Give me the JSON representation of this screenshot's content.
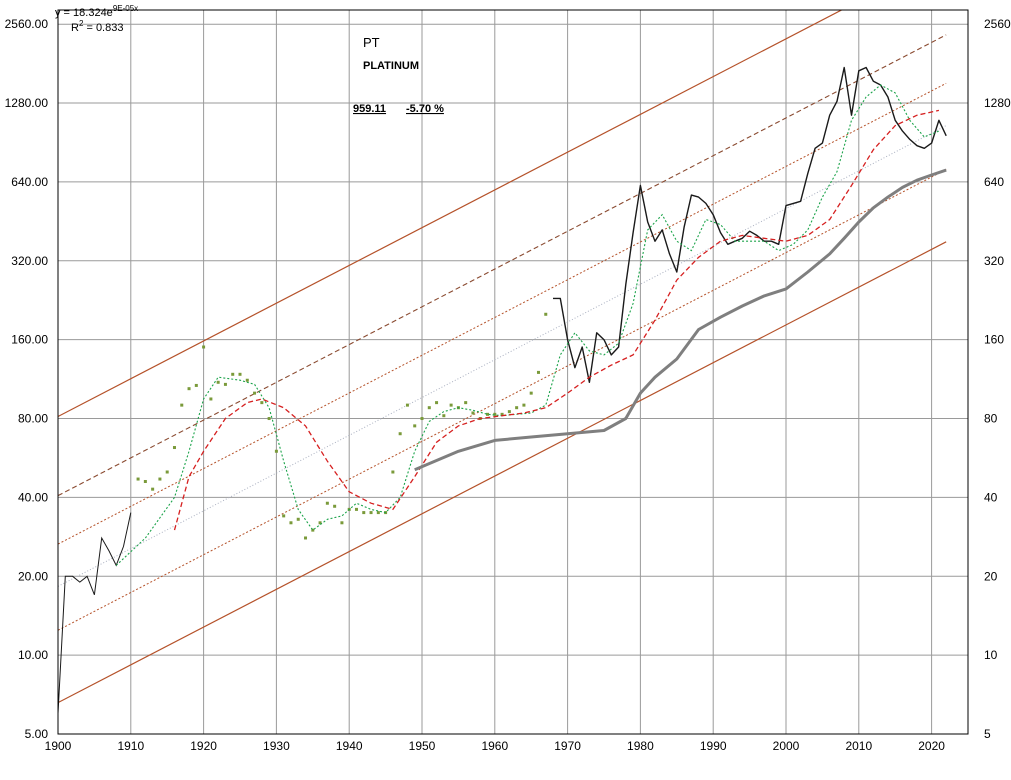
{
  "chart_data": {
    "type": "line",
    "title": "PT",
    "subtitle": "PLATINUM",
    "last_price": "959.11",
    "change": "-5.70 %",
    "regression": {
      "equation_prefix": "y = 18.324e",
      "equation_exponent": "9E-05x",
      "r2_label": "R",
      "r2_exponent": "2",
      "r2_value": " = 0.833"
    },
    "x_axis": {
      "min": 1900,
      "max": 2025,
      "ticks": [
        "1900",
        "1910",
        "1920",
        "1930",
        "1940",
        "1950",
        "1960",
        "1970",
        "1980",
        "1990",
        "2000",
        "2010",
        "2020"
      ]
    },
    "y_axis": {
      "scale": "log",
      "min": 5,
      "max": 2900,
      "left_ticks": [
        "5.00",
        "10.00",
        "20.00",
        "40.00",
        "80.00",
        "160.00",
        "320.00",
        "640.00",
        "1280.00",
        "2560.00"
      ],
      "right_ticks": [
        "5",
        "10",
        "20",
        "40",
        "80",
        "160",
        "320",
        "640",
        "1280",
        "2560"
      ],
      "tick_values": [
        5,
        10,
        20,
        40,
        80,
        160,
        320,
        640,
        1280,
        2560
      ]
    },
    "grid": true,
    "channel_lines": {
      "x": [
        1900,
        2022
      ],
      "center": [
        18.3,
        1050
      ],
      "offset_factors": [
        0.36,
        0.68,
        1.45,
        2.22,
        4.45
      ]
    },
    "series": [
      {
        "role": "price",
        "color": "#1a1a1a",
        "x": [
          1900,
          1901,
          1902,
          1903,
          1904,
          1905,
          1906,
          1907,
          1908,
          1909,
          1910,
          1911,
          1912,
          1913,
          1914,
          1915,
          1916,
          1917,
          1918,
          1919,
          1920,
          1921,
          1922,
          1923,
          1924,
          1925,
          1926,
          1927,
          1928,
          1929,
          1930,
          1931,
          1932,
          1933,
          1934,
          1935,
          1936,
          1937,
          1938,
          1939,
          1940,
          1941,
          1942,
          1943,
          1944,
          1945,
          1946,
          1947,
          1948,
          1949,
          1950,
          1951,
          1952,
          1953,
          1954,
          1955,
          1956,
          1957,
          1958,
          1959,
          1960,
          1961,
          1962,
          1963,
          1964,
          1965,
          1966,
          1967,
          1968,
          1969,
          1970,
          1971,
          1972,
          1973,
          1974,
          1975,
          1976,
          1977,
          1978,
          1979,
          1980,
          1981,
          1982,
          1983,
          1984,
          1985,
          1986,
          1987,
          1988,
          1989,
          1990,
          1991,
          1992,
          1993,
          1994,
          1995,
          1996,
          1997,
          1998,
          1999,
          2000,
          2001,
          2002,
          2003,
          2004,
          2005,
          2006,
          2007,
          2008,
          2009,
          2010,
          2011,
          2012,
          2013,
          2014,
          2015,
          2016,
          2017,
          2018,
          2019,
          2020,
          2021,
          2022
        ],
        "y": [
          6,
          20,
          20,
          19,
          20,
          17,
          28,
          25,
          22,
          26,
          35,
          47,
          46,
          43,
          47,
          50,
          62,
          90,
          104,
          107,
          150,
          95,
          110,
          108,
          118,
          118,
          112,
          100,
          92,
          80,
          60,
          34,
          32,
          33,
          28,
          30,
          32,
          38,
          37,
          32,
          36,
          36,
          35,
          35,
          35,
          35,
          50,
          70,
          90,
          75,
          80,
          88,
          92,
          82,
          90,
          88,
          92,
          84,
          80,
          83,
          83,
          83,
          85,
          88,
          90,
          100,
          120,
          200,
          230,
          230,
          160,
          125,
          150,
          110,
          170,
          160,
          140,
          150,
          260,
          410,
          620,
          450,
          380,
          420,
          340,
          290,
          430,
          570,
          560,
          530,
          480,
          410,
          370,
          380,
          390,
          415,
          400,
          380,
          380,
          370,
          520,
          530,
          540,
          690,
          860,
          900,
          1150,
          1300,
          1750,
          1150,
          1700,
          1750,
          1550,
          1500,
          1350,
          1100,
          1000,
          930,
          880,
          860,
          900,
          1100,
          960
        ]
      },
      {
        "role": "moving-average-short",
        "color": "#1ba34a",
        "x": [
          1908,
          1912,
          1916,
          1918,
          1920,
          1922,
          1925,
          1927,
          1929,
          1931,
          1933,
          1935,
          1937,
          1939,
          1941,
          1943,
          1945,
          1947,
          1949,
          1951,
          1953,
          1955,
          1957,
          1959,
          1961,
          1963,
          1965,
          1967,
          1969,
          1971,
          1973,
          1975,
          1977,
          1979,
          1981,
          1983,
          1985,
          1987,
          1989,
          1991,
          1993,
          1995,
          1997,
          1999,
          2001,
          2003,
          2005,
          2007,
          2009,
          2011,
          2013,
          2015,
          2017,
          2019,
          2021
        ],
        "y": [
          22,
          28,
          40,
          60,
          95,
          115,
          112,
          108,
          88,
          55,
          36,
          30,
          33,
          34,
          38,
          36,
          35,
          40,
          60,
          78,
          85,
          88,
          86,
          83,
          82,
          83,
          84,
          90,
          140,
          170,
          145,
          140,
          155,
          220,
          420,
          480,
          380,
          350,
          460,
          440,
          380,
          380,
          380,
          350,
          370,
          420,
          560,
          700,
          1100,
          1350,
          1500,
          1400,
          1100,
          950,
          1000
        ]
      },
      {
        "role": "moving-average-long",
        "color": "#d62020",
        "x": [
          1916,
          1918,
          1920,
          1923,
          1926,
          1928,
          1931,
          1934,
          1937,
          1940,
          1943,
          1946,
          1949,
          1952,
          1955,
          1958,
          1961,
          1964,
          1967,
          1970,
          1973,
          1976,
          1979,
          1982,
          1985,
          1988,
          1991,
          1994,
          1997,
          2000,
          2003,
          2006,
          2009,
          2012,
          2015,
          2018,
          2021
        ],
        "y": [
          30,
          48,
          60,
          80,
          92,
          95,
          88,
          75,
          55,
          42,
          38,
          36,
          48,
          65,
          75,
          80,
          82,
          84,
          88,
          100,
          115,
          128,
          140,
          190,
          270,
          330,
          380,
          400,
          390,
          380,
          400,
          460,
          620,
          850,
          1050,
          1150,
          1200
        ]
      },
      {
        "role": "trend",
        "color": "#7f7f7f",
        "x": [
          1949,
          1955,
          1960,
          1965,
          1970,
          1975,
          1978,
          1980,
          1982,
          1985,
          1988,
          1991,
          1994,
          1997,
          2000,
          2003,
          2006,
          2008,
          2010,
          2012,
          2014,
          2016,
          2018,
          2020,
          2022
        ],
        "y": [
          51,
          60,
          66,
          68,
          70,
          72,
          80,
          100,
          115,
          135,
          175,
          195,
          215,
          235,
          250,
          290,
          340,
          390,
          450,
          510,
          560,
          610,
          650,
          680,
          710
        ]
      }
    ]
  }
}
